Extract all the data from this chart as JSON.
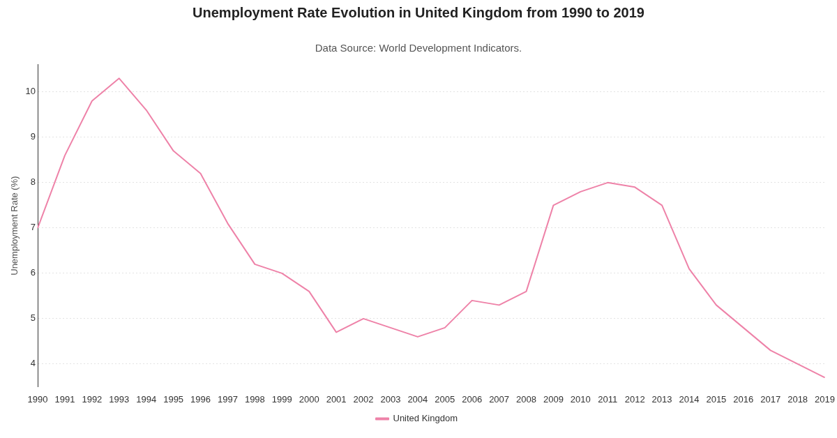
{
  "chart_data": {
    "type": "line",
    "title": "Unemployment Rate Evolution in United Kingdom from 1990 to 2019",
    "subtitle": "Data Source: World Development Indicators.",
    "ylabel": "Unemployment Rate (%)",
    "categories": [
      "1990",
      "1991",
      "1992",
      "1993",
      "1994",
      "1995",
      "1996",
      "1997",
      "1998",
      "1999",
      "2000",
      "2001",
      "2002",
      "2003",
      "2004",
      "2005",
      "2006",
      "2007",
      "2008",
      "2009",
      "2010",
      "2011",
      "2012",
      "2013",
      "2014",
      "2015",
      "2016",
      "2017",
      "2018",
      "2019"
    ],
    "series": [
      {
        "name": "United Kingdom",
        "color": "#ee82a8",
        "values": [
          7.0,
          8.6,
          9.8,
          10.3,
          9.6,
          8.7,
          8.2,
          7.1,
          6.2,
          6.0,
          5.6,
          4.7,
          5.0,
          4.8,
          4.6,
          4.8,
          5.4,
          5.3,
          5.6,
          7.5,
          7.8,
          8.0,
          7.9,
          7.5,
          6.1,
          5.3,
          4.8,
          4.3,
          4.0,
          3.7
        ]
      }
    ],
    "ylim": [
      3.5,
      10.6
    ],
    "yticks": [
      4,
      5,
      6,
      7,
      8,
      9,
      10
    ],
    "grid": "y",
    "legend": "bottom",
    "marker": "none",
    "line_style": "solid"
  }
}
